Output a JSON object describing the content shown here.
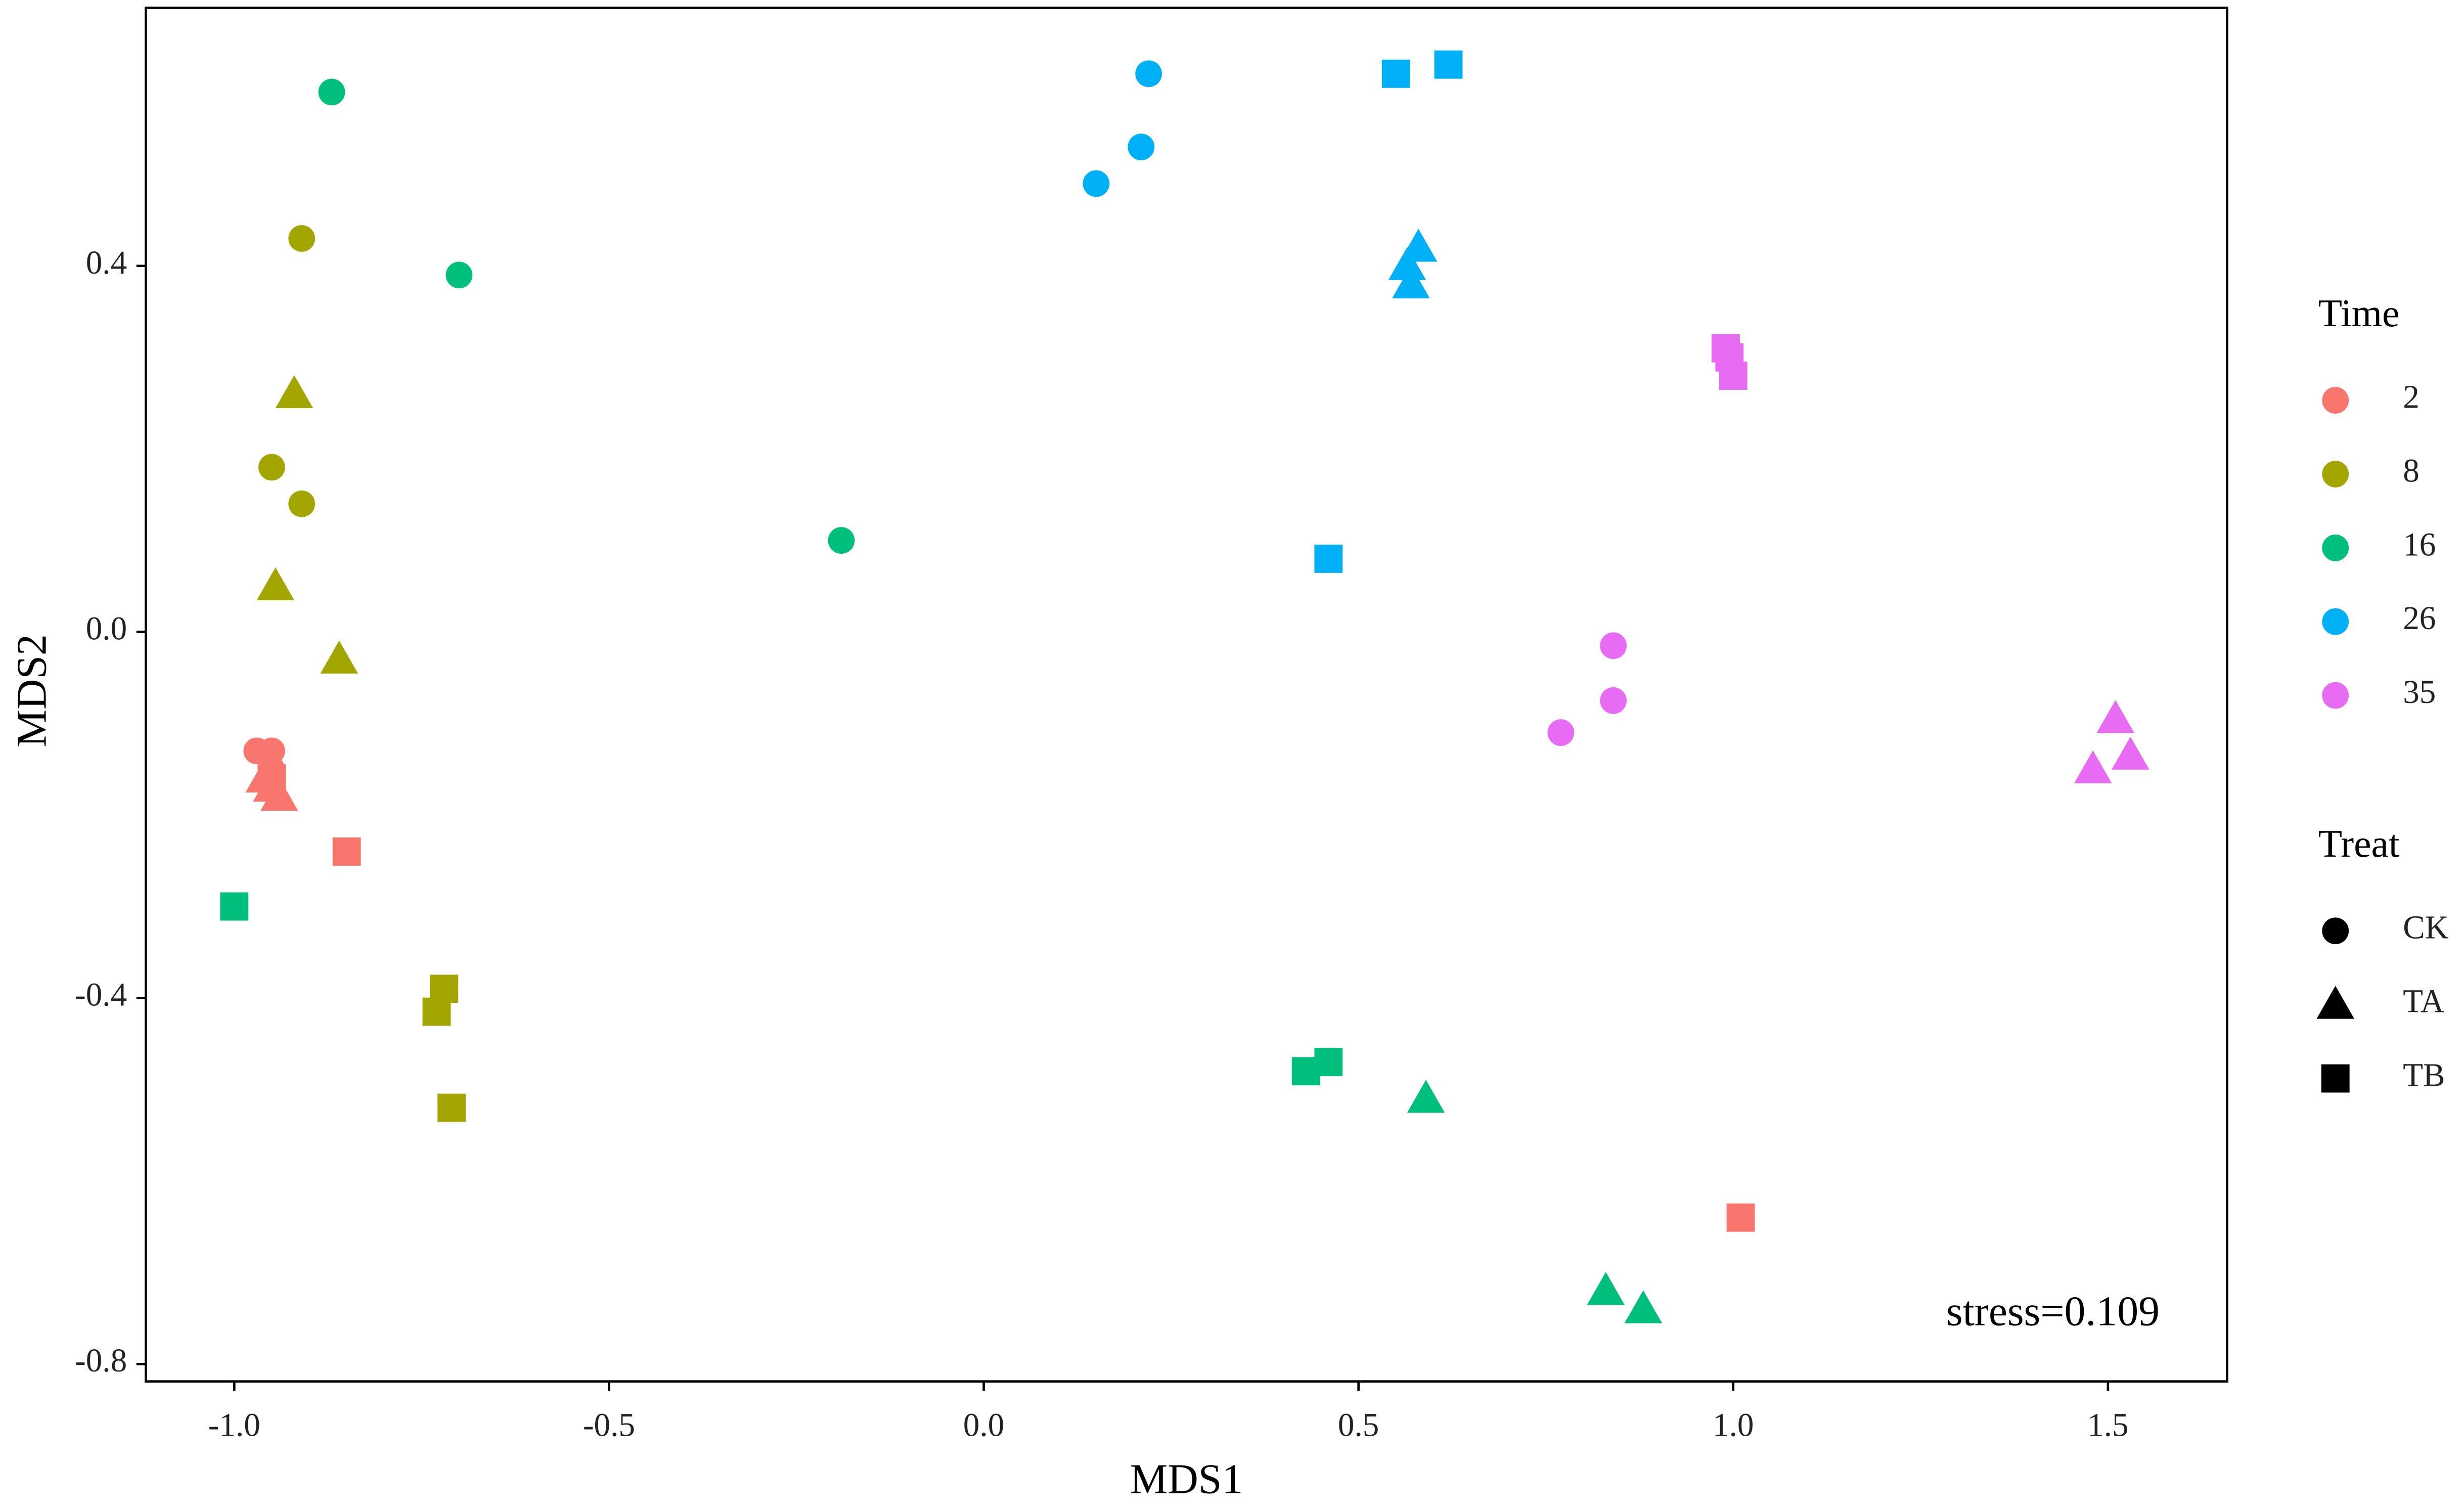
{
  "chart_data": {
    "type": "scatter",
    "x_label": "MDS1",
    "y_label": "MDS2",
    "annotation": "stress=0.109",
    "xlim": [
      -1.118,
      1.659
    ],
    "ylim": [
      -0.819,
      0.682
    ],
    "xticks": [
      {
        "value": -1.0,
        "label": "-1.0"
      },
      -0.5,
      {
        "value": 0.0,
        "label": "0.0"
      },
      0.5,
      {
        "value": 1.0,
        "label": "1.0"
      },
      1.5
    ],
    "yticks": [
      -0.8,
      -0.4,
      {
        "value": 0.0,
        "label": "0.0"
      },
      0.4
    ],
    "grid": false,
    "legend_title": "Time",
    "shape_legend": {
      "title": "Treat",
      "items": [
        {
          "name": "CK",
          "shape": "circle"
        },
        {
          "name": "TA",
          "shape": "triangle"
        },
        {
          "name": "TB",
          "shape": "square"
        }
      ]
    },
    "series": [
      {
        "name": "2",
        "color": "#f8766d",
        "x": [
          -0.97,
          -0.95,
          -0.95,
          -0.96,
          -0.95,
          -0.94,
          -0.85,
          1.01,
          -0.95
        ],
        "y": [
          -0.13,
          -0.13,
          -0.15,
          -0.16,
          -0.17,
          -0.18,
          -0.24,
          -0.64,
          -0.16
        ],
        "treat": [
          "CK",
          "CK",
          "CK",
          "TA",
          "TA",
          "TA",
          "TB",
          "TB",
          "TB"
        ]
      },
      {
        "name": "8",
        "color": "#a3a500",
        "x": [
          -0.91,
          -0.95,
          -0.91,
          -0.92,
          -0.945,
          -0.86,
          -0.72,
          -0.73,
          -0.71
        ],
        "y": [
          0.43,
          0.18,
          0.14,
          0.26,
          0.05,
          -0.03,
          -0.39,
          -0.415,
          -0.52
        ],
        "treat": [
          "CK",
          "CK",
          "CK",
          "TA",
          "TA",
          "TA",
          "TB",
          "TB",
          "TB"
        ]
      },
      {
        "name": "16",
        "color": "#00bf7d",
        "x": [
          -0.87,
          -0.7,
          -0.19,
          0.59,
          0.83,
          0.88,
          -1.0,
          0.43,
          0.46
        ],
        "y": [
          0.59,
          0.39,
          0.1,
          -0.51,
          -0.72,
          -0.74,
          -0.3,
          -0.48,
          -0.47
        ],
        "treat": [
          "CK",
          "CK",
          "CK",
          "TA",
          "TA",
          "TA",
          "TB",
          "TB",
          "TB"
        ]
      },
      {
        "name": "26",
        "color": "#00b0f6",
        "x": [
          0.22,
          0.21,
          0.15,
          0.58,
          0.565,
          0.57,
          0.55,
          0.62,
          0.46
        ],
        "y": [
          0.61,
          0.53,
          0.49,
          0.42,
          0.4,
          0.38,
          0.61,
          0.62,
          0.08
        ],
        "treat": [
          "CK",
          "CK",
          "CK",
          "TA",
          "TA",
          "TA",
          "TB",
          "TB",
          "TB"
        ]
      },
      {
        "name": "35",
        "color": "#e76bf3",
        "x": [
          0.84,
          0.84,
          0.77,
          1.51,
          1.53,
          1.48,
          0.99,
          1.0,
          0.995
        ],
        "y": [
          -0.015,
          -0.075,
          -0.11,
          -0.095,
          -0.135,
          -0.15,
          0.31,
          0.28,
          0.3
        ],
        "treat": [
          "CK",
          "CK",
          "CK",
          "TA",
          "TA",
          "TA",
          "TB",
          "TB",
          "TB"
        ]
      }
    ]
  }
}
